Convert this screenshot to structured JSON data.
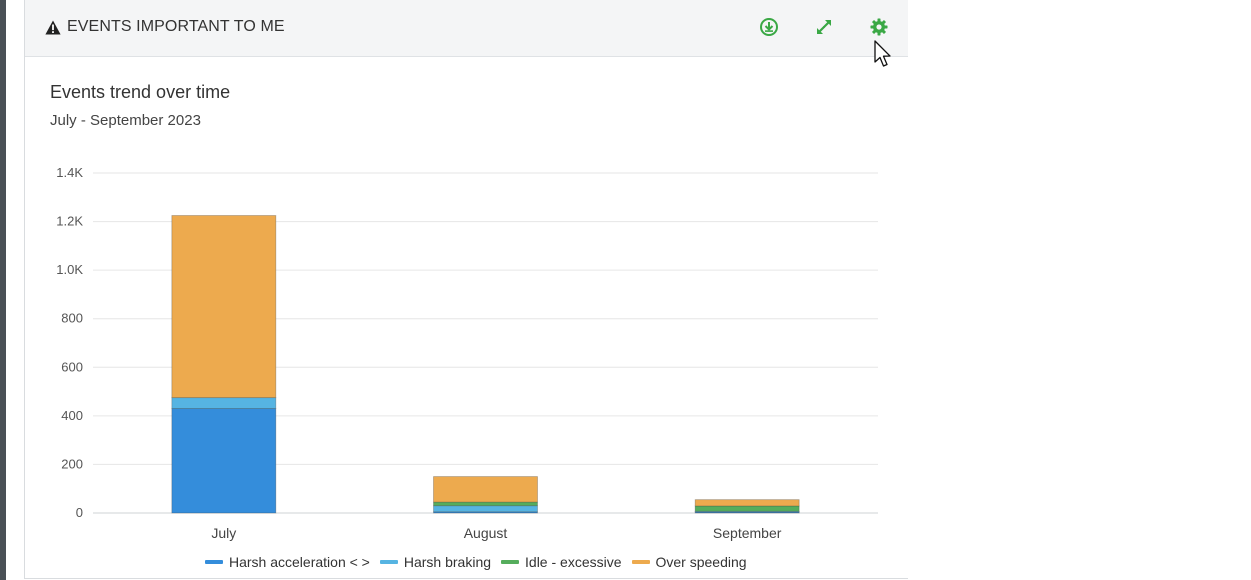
{
  "panel": {
    "title": "EVENTS IMPORTANT TO ME",
    "icons": {
      "warning": "warning-icon",
      "download": "download-icon",
      "expand": "expand-icon",
      "settings": "gear-icon"
    },
    "accent_color": "#3aa845"
  },
  "chart_data": {
    "type": "bar",
    "stacked": true,
    "title": "Events trend over time",
    "subtitle": "July - September 2023",
    "categories": [
      "July",
      "August",
      "September"
    ],
    "ylim": [
      0,
      1400
    ],
    "yticks": [
      "0",
      "200",
      "400",
      "600",
      "800",
      "1.0K",
      "1.2K",
      "1.4K"
    ],
    "ytick_values": [
      0,
      200,
      400,
      600,
      800,
      1000,
      1200,
      1400
    ],
    "grid": true,
    "legend_position": "bottom",
    "series": [
      {
        "name": "Harsh acceleration < >",
        "color": "#348ddb",
        "values": [
          430,
          5,
          4
        ]
      },
      {
        "name": "Harsh braking",
        "color": "#56b4e2",
        "values": [
          45,
          25,
          3
        ]
      },
      {
        "name": "Idle - excessive",
        "color": "#55ad5c",
        "values": [
          0,
          15,
          22
        ]
      },
      {
        "name": "Over speeding",
        "color": "#edaa4e",
        "values": [
          750,
          105,
          26
        ]
      }
    ]
  }
}
